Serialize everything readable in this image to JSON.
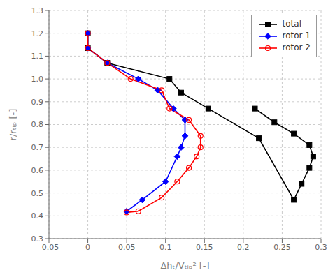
{
  "chart_data": {
    "type": "line",
    "xlabel": "Δhₜ/Vₜᵢₚ² [-]",
    "ylabel": "r/rₜᵢₚ [-]",
    "series": [
      {
        "name": "total",
        "color": "#000000",
        "marker": "square",
        "line_style": "solid",
        "x": [
          0.0,
          0.0,
          0.025,
          0.105,
          0.12,
          0.155,
          0.22,
          0.265,
          0.275,
          0.285,
          0.29,
          0.285,
          0.265,
          0.24,
          0.215
        ],
        "values": [
          1.2,
          1.135,
          1.07,
          1.0,
          0.94,
          0.87,
          0.74,
          0.47,
          0.54,
          0.61,
          0.66,
          0.71,
          0.76,
          0.81,
          0.87
        ]
      },
      {
        "name": "rotor 1",
        "color": "#0000FF",
        "marker": "diamond",
        "line_style": "solid",
        "x": [
          0.0,
          0.0,
          0.025,
          0.065,
          0.09,
          0.11,
          0.125,
          0.125,
          0.12,
          0.115,
          0.1,
          0.07,
          0.05
        ],
        "values": [
          1.2,
          1.135,
          1.07,
          1.0,
          0.95,
          0.87,
          0.82,
          0.75,
          0.7,
          0.66,
          0.55,
          0.47,
          0.42
        ]
      },
      {
        "name": "rotor 2",
        "color": "#FF0000",
        "marker": "open-circle",
        "line_style": "solid",
        "x": [
          0.0,
          0.0,
          0.025,
          0.055,
          0.095,
          0.105,
          0.13,
          0.145,
          0.145,
          0.14,
          0.13,
          0.115,
          0.095,
          0.065,
          0.05
        ],
        "values": [
          1.2,
          1.135,
          1.07,
          1.0,
          0.95,
          0.87,
          0.82,
          0.75,
          0.7,
          0.66,
          0.61,
          0.55,
          0.48,
          0.42,
          0.415
        ]
      }
    ],
    "xlim": [
      -0.05,
      0.3
    ],
    "ylim": [
      0.3,
      1.3
    ],
    "xticks": [
      -0.05,
      0,
      0.05,
      0.1,
      0.15,
      0.2,
      0.25,
      0.3
    ],
    "yticks": [
      0.3,
      0.4,
      0.5,
      0.6,
      0.7,
      0.8,
      0.9,
      {
        "value": 1,
        "label": "1.0"
      },
      1.1,
      1.2,
      1.3
    ],
    "grid": true,
    "legend": "upper right"
  }
}
